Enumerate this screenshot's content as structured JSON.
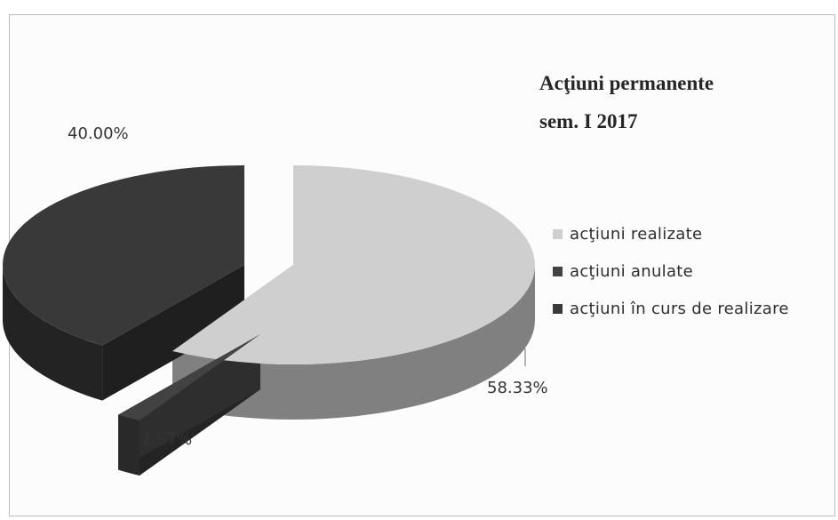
{
  "chart_data": {
    "type": "pie",
    "title_lines": [
      "Acţiuni permanente",
      "sem. I 2017"
    ],
    "categories": [
      "acţiuni realizate",
      "acţiuni anulate",
      "acţiuni în curs de realizare"
    ],
    "values": [
      58.33,
      1.67,
      40.0
    ],
    "data_labels": [
      "58.33%",
      "1.67%",
      "40.00%"
    ],
    "colors": [
      "#cfcfcf",
      "#424242",
      "#393939"
    ],
    "legend_position": "right",
    "style": "3d-exploded"
  }
}
